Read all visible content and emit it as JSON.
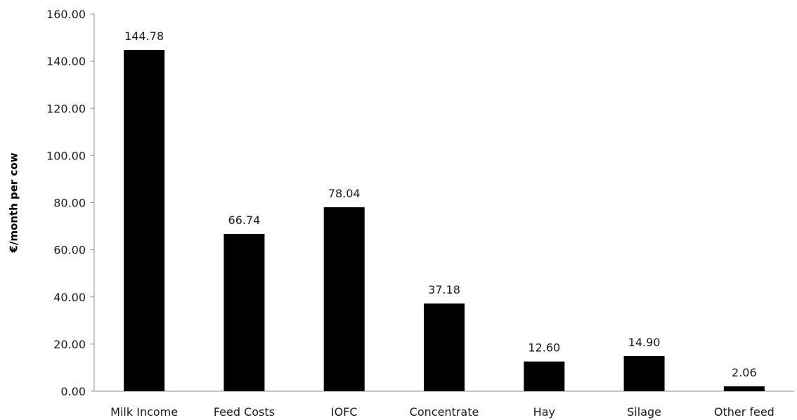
{
  "chart_data": {
    "type": "bar",
    "title": "",
    "xlabel": "",
    "ylabel": "€/month per cow",
    "categories": [
      "Milk Income",
      "Feed Costs",
      "IOFC",
      "Concentrate",
      "Hay",
      "Silage",
      "Other feed"
    ],
    "values": [
      144.78,
      66.74,
      78.04,
      37.18,
      12.6,
      14.9,
      2.06
    ],
    "data_labels": [
      "144.78",
      "66.74",
      "78.04",
      "37.18",
      "12.60",
      "14.90",
      "2.06"
    ],
    "ylim": [
      0,
      160
    ],
    "yticks": [
      0,
      20,
      40,
      60,
      80,
      100,
      120,
      140,
      160
    ],
    "ytick_labels": [
      "0.00",
      "20.00",
      "40.00",
      "60.00",
      "80.00",
      "100.00",
      "120.00",
      "140.00",
      "160.00"
    ],
    "grid": false,
    "legend": "none",
    "bar_color": "#000000"
  }
}
